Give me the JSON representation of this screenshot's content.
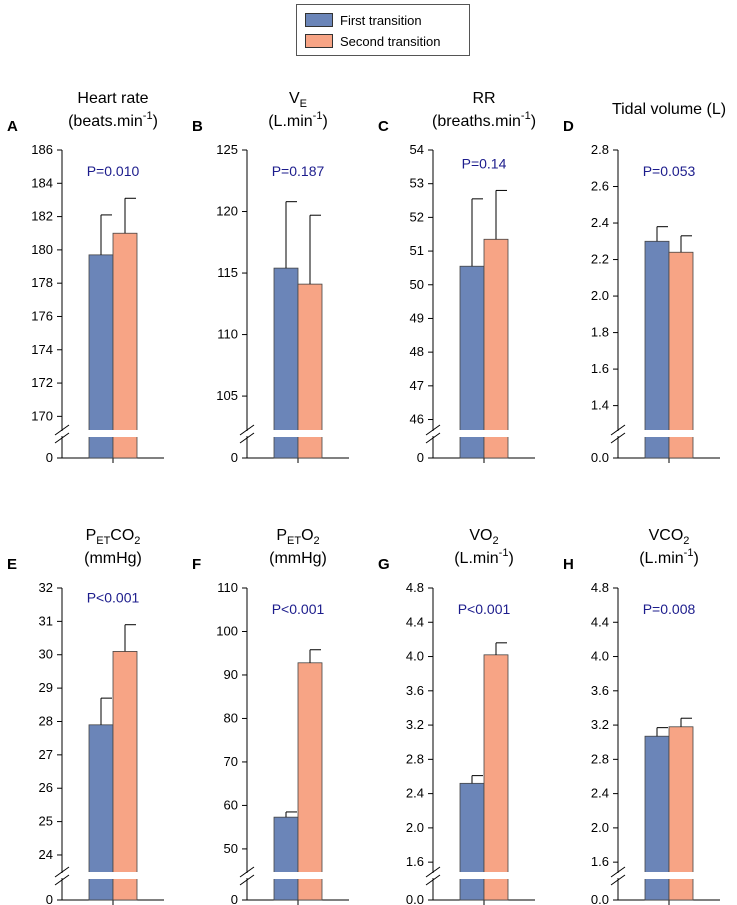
{
  "colors": {
    "first": "#6b85b8",
    "second": "#f7a485",
    "pvalue": "#1c1c8c",
    "axis": "#000000"
  },
  "legend": {
    "first_label": "First transition",
    "second_label": "Second transition"
  },
  "chart_data": [
    {
      "letter": "A",
      "title": "Heart rate",
      "unit_pre": "(beats.min",
      "unit_sup": "-1",
      "unit_post": ")",
      "type": "bar",
      "categories": [
        "First transition",
        "Second transition"
      ],
      "values": [
        179.7,
        181.0
      ],
      "errors": [
        2.4,
        2.1
      ],
      "ylim": [
        169,
        186
      ],
      "ticks": [
        170,
        172,
        174,
        176,
        178,
        180,
        182,
        184,
        186
      ],
      "tick_labels": [
        "170",
        "172",
        "174",
        "176",
        "178",
        "180",
        "182",
        "184",
        "186"
      ],
      "zero_label": "0",
      "pvalue": "P=0.010"
    },
    {
      "letter": "B",
      "title_main": "V",
      "title_sub": "E",
      "unit_pre": "(L.min",
      "unit_sup": "-1",
      "unit_post": ")",
      "type": "bar",
      "categories": [
        "First transition",
        "Second transition"
      ],
      "values": [
        115.4,
        114.1
      ],
      "errors": [
        5.4,
        5.6
      ],
      "ylim": [
        102,
        125
      ],
      "ticks": [
        105,
        110,
        115,
        120,
        125
      ],
      "tick_labels": [
        "105",
        "110",
        "115",
        "120",
        "125"
      ],
      "zero_label": "0",
      "pvalue": "P=0.187"
    },
    {
      "letter": "C",
      "title": "RR",
      "unit_pre": "(breaths.min",
      "unit_sup": "-1",
      "unit_post": ")",
      "type": "bar",
      "categories": [
        "First transition",
        "Second transition"
      ],
      "values": [
        50.55,
        51.35
      ],
      "errors": [
        2.0,
        1.45
      ],
      "ylim": [
        45.6,
        54
      ],
      "ticks": [
        46,
        47,
        48,
        49,
        50,
        51,
        52,
        53,
        54
      ],
      "tick_labels": [
        "46",
        "47",
        "48",
        "49",
        "50",
        "51",
        "52",
        "53",
        "54"
      ],
      "zero_label": "0",
      "pvalue": "P=0.14"
    },
    {
      "letter": "D",
      "title": "Tidal volume (L)",
      "type": "bar",
      "categories": [
        "First transition",
        "Second transition"
      ],
      "values": [
        2.3,
        2.24
      ],
      "errors": [
        0.08,
        0.09
      ],
      "ylim": [
        1.25,
        2.8
      ],
      "ticks": [
        1.4,
        1.6,
        1.8,
        2.0,
        2.2,
        2.4,
        2.6,
        2.8
      ],
      "tick_labels": [
        "1.4",
        "1.6",
        "1.8",
        "2.0",
        "2.2",
        "2.4",
        "2.6",
        "2.8"
      ],
      "zero_label": "0.0",
      "pvalue": "P=0.053"
    },
    {
      "letter": "E",
      "title_main": "P",
      "title_sub": "ET",
      "title_rest": "CO",
      "title_sub2": "2",
      "unit_line": "(mmHg)",
      "type": "bar",
      "categories": [
        "First transition",
        "Second transition"
      ],
      "values": [
        27.9,
        30.1
      ],
      "errors": [
        0.8,
        0.8
      ],
      "ylim": [
        23.4,
        32
      ],
      "ticks": [
        24,
        25,
        26,
        27,
        28,
        29,
        30,
        31,
        32
      ],
      "tick_labels": [
        "24",
        "25",
        "26",
        "27",
        "28",
        "29",
        "30",
        "31",
        "32"
      ],
      "zero_label": "0",
      "pvalue": "P<0.001"
    },
    {
      "letter": "F",
      "title_main": "P",
      "title_sub": "ET",
      "title_rest": "O",
      "title_sub2": "2",
      "unit_line": "(mmHg)",
      "type": "bar",
      "categories": [
        "First transition",
        "Second transition"
      ],
      "values": [
        57.3,
        92.8
      ],
      "errors": [
        1.2,
        3.0
      ],
      "ylim": [
        44,
        110
      ],
      "ticks": [
        50,
        60,
        70,
        80,
        90,
        100,
        110
      ],
      "tick_labels": [
        "50",
        "60",
        "70",
        "80",
        "90",
        "100",
        "110"
      ],
      "zero_label": "0",
      "pvalue": "P<0.001"
    },
    {
      "letter": "G",
      "title_main": "VO",
      "title_sub": "2",
      "unit_pre": "(L.min",
      "unit_sup": "-1",
      "unit_post": ")",
      "type": "bar",
      "categories": [
        "First transition",
        "Second transition"
      ],
      "values": [
        2.52,
        4.02
      ],
      "errors": [
        0.09,
        0.14
      ],
      "ylim": [
        1.45,
        4.8
      ],
      "ticks": [
        1.6,
        2.0,
        2.4,
        2.8,
        3.2,
        3.6,
        4.0,
        4.4,
        4.8
      ],
      "tick_labels": [
        "1.6",
        "2.0",
        "2.4",
        "2.8",
        "3.2",
        "3.6",
        "4.0",
        "4.4",
        "4.8"
      ],
      "zero_label": "0.0",
      "pvalue": "P<0.001"
    },
    {
      "letter": "H",
      "title_main": "VCO",
      "title_sub": "2",
      "unit_pre": "(L.min",
      "unit_sup": "-1",
      "unit_post": ")",
      "type": "bar",
      "categories": [
        "First transition",
        "Second transition"
      ],
      "values": [
        3.07,
        3.18
      ],
      "errors": [
        0.1,
        0.1
      ],
      "ylim": [
        1.45,
        4.8
      ],
      "ticks": [
        1.6,
        2.0,
        2.4,
        2.8,
        3.2,
        3.6,
        4.0,
        4.4,
        4.8
      ],
      "tick_labels": [
        "1.6",
        "2.0",
        "2.4",
        "2.8",
        "3.2",
        "3.6",
        "4.0",
        "4.4",
        "4.8"
      ],
      "zero_label": "0.0",
      "pvalue": "P=0.008"
    }
  ]
}
